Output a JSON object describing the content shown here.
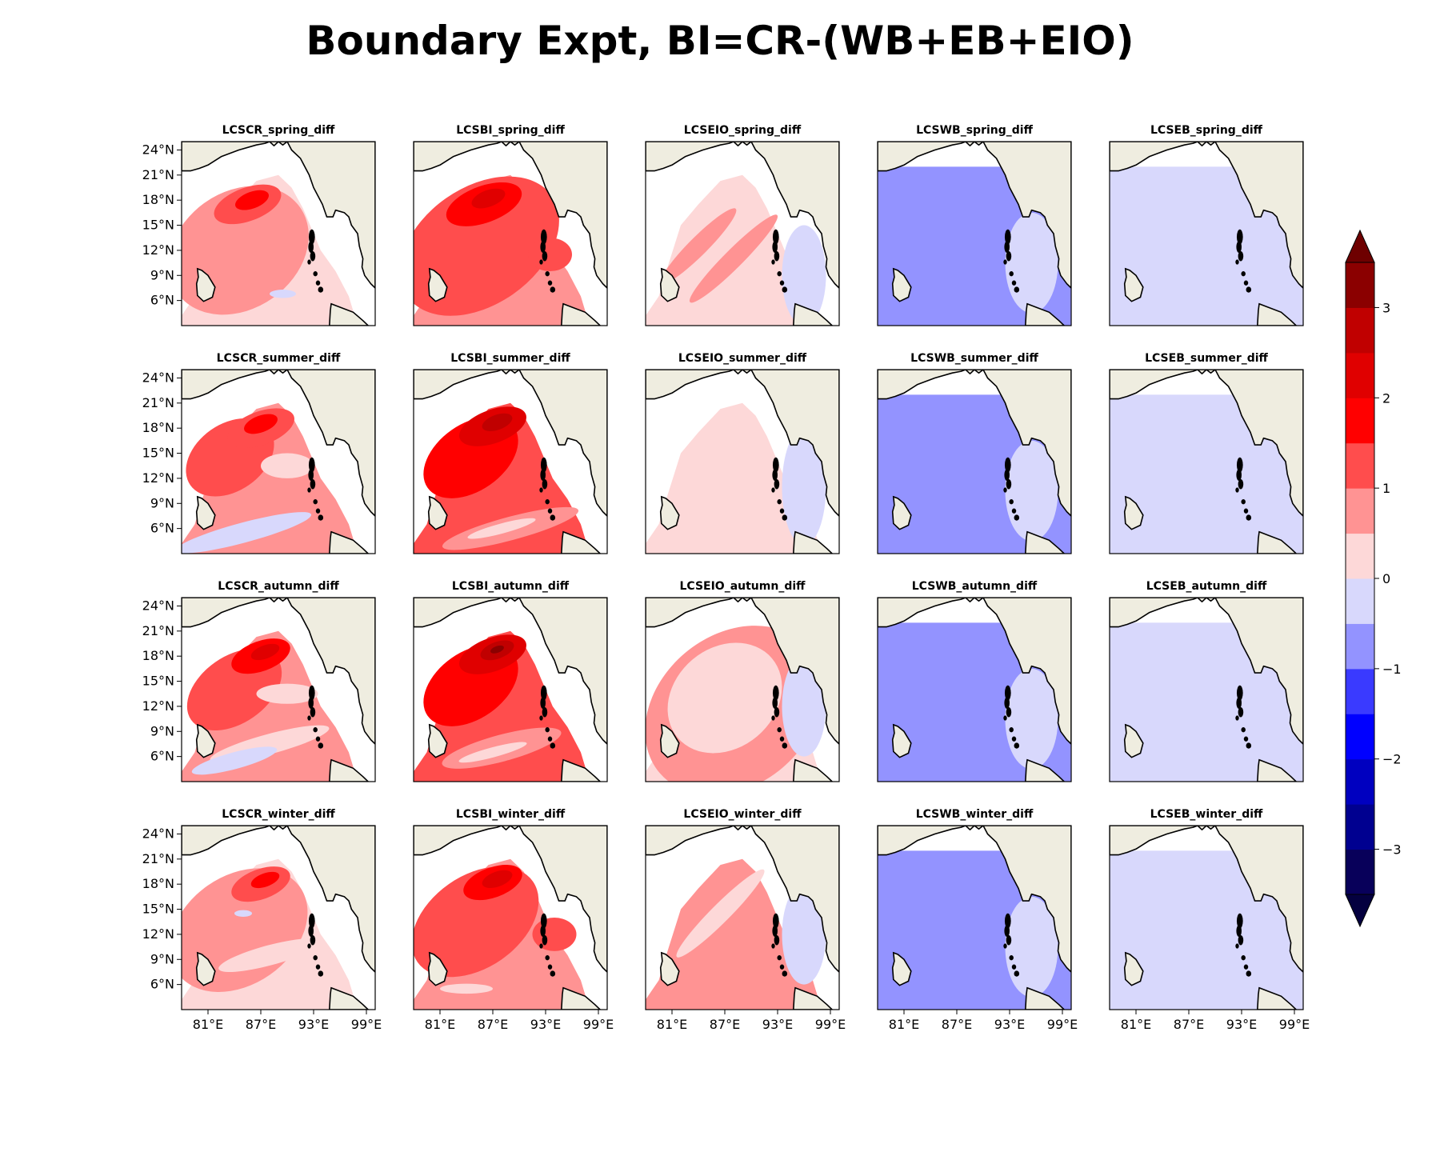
{
  "figure": {
    "title": "Boundary Expt, BI=CR-(WB+EB+EIO)"
  },
  "colors": {
    "land": "#efede0",
    "sea_neutral": "#ffffff",
    "coast": "#000000",
    "levels": [
      "#08005a",
      "#000090",
      "#0000c0",
      "#0000ff",
      "#3a3aff",
      "#9393ff",
      "#d8d8fc",
      "#fdd8d8",
      "#ff9393",
      "#ff4d4d",
      "#ff0000",
      "#e00000",
      "#c00000",
      "#8b0000"
    ]
  },
  "chart_data": {
    "type": "heatmap",
    "grid": {
      "rows": 4,
      "cols": 5
    },
    "panels": [
      {
        "title": "LCSCR_spring_diff",
        "bg_level": 7,
        "blobs": [
          {
            "level": 8,
            "cx": 84.5,
            "cy": 12,
            "rx": 8.5,
            "ry": 7,
            "rot": -35
          },
          {
            "level": 9,
            "cx": 85.5,
            "cy": 17.5,
            "rx": 4,
            "ry": 2,
            "rot": -20
          },
          {
            "level": 10,
            "cx": 86,
            "cy": 18,
            "rx": 2,
            "ry": 1,
            "rot": -20
          },
          {
            "level": 6,
            "cx": 89.5,
            "cy": 6.8,
            "rx": 1.5,
            "ry": 0.5,
            "rot": 0
          }
        ]
      },
      {
        "title": "LCSBI_spring_diff",
        "bg_level": 8,
        "blobs": [
          {
            "level": 9,
            "cx": 85.5,
            "cy": 12.5,
            "rx": 10,
            "ry": 7,
            "rot": -35
          },
          {
            "level": 10,
            "cx": 86,
            "cy": 17.5,
            "rx": 4.5,
            "ry": 2.2,
            "rot": -20
          },
          {
            "level": 11,
            "cx": 86.5,
            "cy": 18.2,
            "rx": 2,
            "ry": 1,
            "rot": -20
          },
          {
            "level": 9,
            "cx": 93.5,
            "cy": 11.5,
            "rx": 2.5,
            "ry": 2,
            "rot": 0
          }
        ]
      },
      {
        "title": "LCSEIO_spring_diff",
        "bg_level": 7,
        "blobs": [
          {
            "level": 8,
            "cx": 84,
            "cy": 12.5,
            "rx": 6,
            "ry": 1.1,
            "rot": -45
          },
          {
            "level": 8,
            "cx": 88,
            "cy": 11,
            "rx": 7,
            "ry": 1.1,
            "rot": -45
          },
          {
            "level": 6,
            "cx": 96,
            "cy": 9,
            "rx": 2.5,
            "ry": 6,
            "rot": 0
          }
        ]
      },
      {
        "title": "LCSWB_spring_diff",
        "bg_level": 5,
        "blobs": [
          {
            "level": 6,
            "cx": 95.5,
            "cy": 10.5,
            "rx": 3,
            "ry": 6,
            "rot": 0
          }
        ]
      },
      {
        "title": "LCSEB_spring_diff",
        "bg_level": 6,
        "blobs": []
      },
      {
        "title": "LCSCR_summer_diff",
        "bg_level": 8,
        "blobs": [
          {
            "level": 9,
            "cx": 83.5,
            "cy": 14.5,
            "rx": 5.5,
            "ry": 4,
            "rot": -35
          },
          {
            "level": 9,
            "cx": 87,
            "cy": 18,
            "rx": 4,
            "ry": 2,
            "rot": -20
          },
          {
            "level": 10,
            "cx": 87,
            "cy": 18.5,
            "rx": 2,
            "ry": 1,
            "rot": -20
          },
          {
            "level": 7,
            "cx": 90,
            "cy": 13.5,
            "rx": 3,
            "ry": 1.5,
            "rot": 0
          },
          {
            "level": 6,
            "cx": 85,
            "cy": 5.5,
            "rx": 8,
            "ry": 1.2,
            "rot": -15
          }
        ]
      },
      {
        "title": "LCSBI_summer_diff",
        "bg_level": 9,
        "blobs": [
          {
            "level": 10,
            "cx": 84.5,
            "cy": 14.5,
            "rx": 6,
            "ry": 4,
            "rot": -35
          },
          {
            "level": 11,
            "cx": 87,
            "cy": 18.2,
            "rx": 4,
            "ry": 2,
            "rot": -20
          },
          {
            "level": 12,
            "cx": 87.5,
            "cy": 18.7,
            "rx": 1.8,
            "ry": 0.9,
            "rot": -20
          },
          {
            "level": 8,
            "cx": 89,
            "cy": 6,
            "rx": 8,
            "ry": 1.4,
            "rot": -15
          },
          {
            "level": 7,
            "cx": 88,
            "cy": 6,
            "rx": 4,
            "ry": 0.6,
            "rot": -15
          }
        ]
      },
      {
        "title": "LCSEIO_summer_diff",
        "bg_level": 7,
        "blobs": [
          {
            "level": 6,
            "cx": 96,
            "cy": 11,
            "rx": 2.5,
            "ry": 7,
            "rot": 0
          }
        ]
      },
      {
        "title": "LCSWB_summer_diff",
        "bg_level": 5,
        "blobs": [
          {
            "level": 6,
            "cx": 95.5,
            "cy": 10.5,
            "rx": 3,
            "ry": 6,
            "rot": 0
          }
        ]
      },
      {
        "title": "LCSEB_summer_diff",
        "bg_level": 6,
        "blobs": []
      },
      {
        "title": "LCSCR_autumn_diff",
        "bg_level": 8,
        "blobs": [
          {
            "level": 9,
            "cx": 84,
            "cy": 14,
            "rx": 6,
            "ry": 4,
            "rot": -35
          },
          {
            "level": 10,
            "cx": 87,
            "cy": 18,
            "rx": 3.5,
            "ry": 1.8,
            "rot": -20
          },
          {
            "level": 11,
            "cx": 87.5,
            "cy": 18.5,
            "rx": 1.7,
            "ry": 0.8,
            "rot": -20
          },
          {
            "level": 7,
            "cx": 90,
            "cy": 13.5,
            "rx": 3.5,
            "ry": 1.2,
            "rot": 0
          },
          {
            "level": 7,
            "cx": 88,
            "cy": 7.5,
            "rx": 7,
            "ry": 1.2,
            "rot": -15
          },
          {
            "level": 6,
            "cx": 84,
            "cy": 5.5,
            "rx": 5,
            "ry": 1,
            "rot": -15
          }
        ]
      },
      {
        "title": "LCSBI_autumn_diff",
        "bg_level": 9,
        "blobs": [
          {
            "level": 10,
            "cx": 84.5,
            "cy": 14.5,
            "rx": 6,
            "ry": 4,
            "rot": -35
          },
          {
            "level": 11,
            "cx": 87,
            "cy": 18.2,
            "rx": 4,
            "ry": 2,
            "rot": -20
          },
          {
            "level": 12,
            "cx": 87.5,
            "cy": 18.7,
            "rx": 2,
            "ry": 1,
            "rot": -20
          },
          {
            "level": 13,
            "cx": 87.5,
            "cy": 18.8,
            "rx": 0.8,
            "ry": 0.4,
            "rot": -20
          },
          {
            "level": 8,
            "cx": 88,
            "cy": 7,
            "rx": 7,
            "ry": 1.6,
            "rot": -15
          },
          {
            "level": 7,
            "cx": 87,
            "cy": 6.5,
            "rx": 4,
            "ry": 0.6,
            "rot": -15
          }
        ]
      },
      {
        "title": "LCSEIO_autumn_diff",
        "bg_level": 7,
        "blobs": [
          {
            "level": 8,
            "cx": 88,
            "cy": 11.5,
            "rx": 11,
            "ry": 9,
            "rot": -40
          },
          {
            "level": 7,
            "cx": 87,
            "cy": 13,
            "rx": 7,
            "ry": 6,
            "rot": -40
          },
          {
            "level": 6,
            "cx": 96,
            "cy": 12,
            "rx": 2.5,
            "ry": 6,
            "rot": 0
          }
        ]
      },
      {
        "title": "LCSWB_autumn_diff",
        "bg_level": 5,
        "blobs": [
          {
            "level": 6,
            "cx": 95.5,
            "cy": 10.5,
            "rx": 3,
            "ry": 6,
            "rot": 0
          }
        ]
      },
      {
        "title": "LCSEB_autumn_diff",
        "bg_level": 6,
        "blobs": []
      },
      {
        "title": "LCSCR_winter_diff",
        "bg_level": 7,
        "blobs": [
          {
            "level": 8,
            "cx": 84.5,
            "cy": 12.5,
            "rx": 8.5,
            "ry": 6.5,
            "rot": -35
          },
          {
            "level": 9,
            "cx": 87,
            "cy": 18,
            "rx": 3.5,
            "ry": 1.8,
            "rot": -20
          },
          {
            "level": 10,
            "cx": 87.5,
            "cy": 18.5,
            "rx": 1.7,
            "ry": 0.8,
            "rot": -20
          },
          {
            "level": 7,
            "cx": 88,
            "cy": 9.5,
            "rx": 6,
            "ry": 1.2,
            "rot": -15
          },
          {
            "level": 6,
            "cx": 85,
            "cy": 14.5,
            "rx": 1,
            "ry": 0.4,
            "rot": 0
          }
        ]
      },
      {
        "title": "LCSBI_winter_diff",
        "bg_level": 8,
        "blobs": [
          {
            "level": 9,
            "cx": 85,
            "cy": 13.5,
            "rx": 8,
            "ry": 5.5,
            "rot": -35
          },
          {
            "level": 10,
            "cx": 87,
            "cy": 18.2,
            "rx": 3.5,
            "ry": 1.8,
            "rot": -20
          },
          {
            "level": 11,
            "cx": 87.5,
            "cy": 18.6,
            "rx": 1.8,
            "ry": 0.9,
            "rot": -20
          },
          {
            "level": 9,
            "cx": 94,
            "cy": 12,
            "rx": 2.5,
            "ry": 2,
            "rot": 0
          },
          {
            "level": 7,
            "cx": 84,
            "cy": 5.5,
            "rx": 3,
            "ry": 0.6,
            "rot": 0
          }
        ]
      },
      {
        "title": "LCSEIO_winter_diff",
        "bg_level": 8,
        "blobs": [
          {
            "level": 7,
            "cx": 86.5,
            "cy": 14.5,
            "rx": 7,
            "ry": 1.1,
            "rot": -45
          },
          {
            "level": 6,
            "cx": 96,
            "cy": 12,
            "rx": 2.5,
            "ry": 6,
            "rot": 0
          }
        ]
      },
      {
        "title": "LCSWB_winter_diff",
        "bg_level": 5,
        "blobs": [
          {
            "level": 6,
            "cx": 95.5,
            "cy": 10.5,
            "rx": 3,
            "ry": 6,
            "rot": 0
          }
        ]
      },
      {
        "title": "LCSEB_winter_diff",
        "bg_level": 6,
        "blobs": []
      }
    ],
    "lon_ticks": [
      "81°E",
      "87°E",
      "93°E",
      "99°E"
    ],
    "lon_values": [
      81,
      87,
      93,
      99
    ],
    "lat_ticks": [
      "24°N",
      "21°N",
      "18°N",
      "15°N",
      "12°N",
      "9°N",
      "6°N"
    ],
    "lat_values": [
      24,
      21,
      18,
      15,
      12,
      9,
      6
    ],
    "xlim": [
      78,
      100
    ],
    "ylim": [
      3,
      25
    ],
    "colorbar": {
      "levels": [
        -3.5,
        -3,
        -2.5,
        -2,
        -1.5,
        -1,
        -0.5,
        0,
        0.5,
        1,
        1.5,
        2,
        2.5,
        3,
        3.5
      ],
      "extend": "both",
      "tick_labels": [
        "3",
        "2",
        "1",
        "0",
        "−1",
        "−2",
        "−3"
      ],
      "tick_values": [
        3,
        2,
        1,
        0,
        -1,
        -2,
        -3
      ]
    }
  },
  "geo": {
    "coast": [
      [
        78,
        21.5
      ],
      [
        79,
        21.5
      ],
      [
        80,
        21.8
      ],
      [
        81,
        22.2
      ],
      [
        82.5,
        23.2
      ],
      [
        84.5,
        24
      ],
      [
        86.5,
        24.6
      ],
      [
        87.5,
        24.8
      ],
      [
        88,
        25
      ],
      [
        88.5,
        24.5
      ],
      [
        89,
        25
      ],
      [
        89.5,
        24.6
      ],
      [
        90,
        25
      ],
      [
        90.5,
        24
      ],
      [
        91.5,
        23
      ],
      [
        92.5,
        21
      ],
      [
        93,
        19.5
      ],
      [
        94,
        17.5
      ],
      [
        94.5,
        16
      ],
      [
        95.2,
        16
      ],
      [
        95.5,
        16.8
      ],
      [
        96.5,
        16.5
      ],
      [
        97,
        16
      ],
      [
        97.3,
        15
      ],
      [
        98,
        14
      ],
      [
        98.2,
        12.5
      ],
      [
        98.6,
        11
      ],
      [
        98.5,
        10
      ],
      [
        98.8,
        9
      ],
      [
        99.5,
        8
      ],
      [
        100,
        7.5
      ],
      [
        100,
        25
      ],
      [
        78,
        25
      ]
    ],
    "lanka": [
      [
        79.8,
        9.8
      ],
      [
        80.3,
        9.6
      ],
      [
        81,
        9
      ],
      [
        81.8,
        7.6
      ],
      [
        81.5,
        6.4
      ],
      [
        80.5,
        5.9
      ],
      [
        79.8,
        6.6
      ],
      [
        79.7,
        8
      ],
      [
        79.9,
        8.8
      ]
    ],
    "sumatra": [
      [
        95,
        5.6
      ],
      [
        96,
        5.2
      ],
      [
        97.5,
        4.6
      ],
      [
        98.6,
        3.6
      ],
      [
        99.2,
        3
      ],
      [
        94.8,
        3
      ],
      [
        94.9,
        4.8
      ]
    ],
    "islands": [
      [
        92.8,
        13.6,
        0.35,
        0.9
      ],
      [
        92.7,
        12.4,
        0.3,
        0.7
      ],
      [
        92.9,
        11.3,
        0.3,
        0.6
      ],
      [
        93.2,
        9.2,
        0.25,
        0.3
      ],
      [
        93.5,
        8.1,
        0.25,
        0.3
      ],
      [
        93.8,
        7.3,
        0.3,
        0.35
      ],
      [
        92.5,
        10.6,
        0.2,
        0.3
      ]
    ]
  }
}
